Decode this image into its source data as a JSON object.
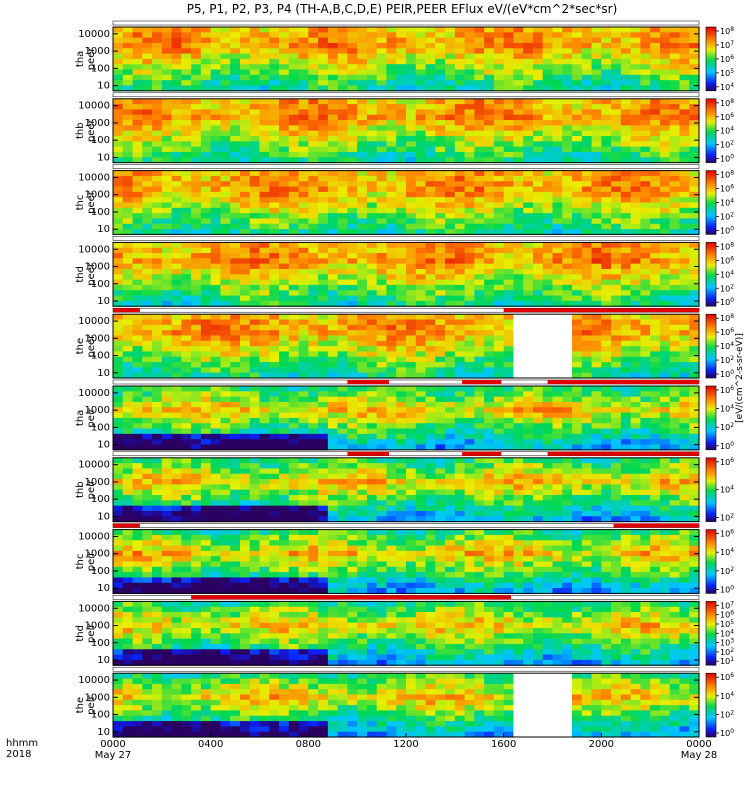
{
  "chart_data": {
    "type": "heatmap",
    "title": "P5, P1, P2, P3, P4 (TH-A,B,C,D,E) PEIR,PEER EFlux eV/(eV*cm^2*sec*sr)",
    "xlabel": "hhmm",
    "year": "2018",
    "x_ticks": [
      {
        "label": "0000",
        "date": "May 27"
      },
      {
        "label": "0400",
        "date": ""
      },
      {
        "label": "0800",
        "date": ""
      },
      {
        "label": "1200",
        "date": ""
      },
      {
        "label": "1600",
        "date": ""
      },
      {
        "label": "2000",
        "date": ""
      },
      {
        "label": "0000",
        "date": "May 28"
      }
    ],
    "xlim_hours": [
      0,
      24
    ],
    "y_ticks": [
      "10000",
      "1000",
      "100",
      "10"
    ],
    "ylim_eV": [
      5,
      25000
    ],
    "y_scale": "log",
    "colorbar_units": "[eV/(cm^2-s-sr-eV)]",
    "colormap": "rainbow (blue-green-yellow-red)",
    "panels": [
      {
        "probe": "tha",
        "species": "peer",
        "cb_ticks": [
          "10^8",
          "10^7",
          "10^6",
          "10^5",
          "10^4"
        ],
        "gaps_hours": [],
        "flags": []
      },
      {
        "probe": "thb",
        "species": "peer",
        "cb_ticks": [
          "10^8",
          "10^6",
          "10^4",
          "10^2",
          "10^0"
        ],
        "gaps_hours": [],
        "flags": []
      },
      {
        "probe": "thc",
        "species": "peer",
        "cb_ticks": [
          "10^8",
          "10^6",
          "10^4",
          "10^2",
          "10^0"
        ],
        "gaps_hours": [],
        "flags": []
      },
      {
        "probe": "thd",
        "species": "peer",
        "cb_ticks": [
          "10^8",
          "10^6",
          "10^4",
          "10^2",
          "10^0"
        ],
        "gaps_hours": [],
        "flags": []
      },
      {
        "probe": "the",
        "species": "peer",
        "cb_ticks": [
          "10^8",
          "10^6",
          "10^4",
          "10^2",
          "10^0"
        ],
        "gaps_hours": [
          [
            16.5,
            18.8
          ]
        ],
        "flags": [
          [
            0,
            1.1
          ],
          [
            16,
            24
          ]
        ]
      },
      {
        "probe": "tha",
        "species": "peir",
        "cb_ticks": [
          "10^6",
          "10^4",
          "10^2",
          "10^0"
        ],
        "gaps_hours": [],
        "flags": [
          [
            9.6,
            11.3
          ],
          [
            14.3,
            15.9
          ],
          [
            17.8,
            24
          ]
        ]
      },
      {
        "probe": "thb",
        "species": "peir",
        "cb_ticks": [
          "10^6",
          "10^4",
          "10^2"
        ],
        "gaps_hours": [],
        "flags": [
          [
            9.6,
            11.3
          ],
          [
            14.3,
            15.9
          ],
          [
            17.8,
            24
          ]
        ]
      },
      {
        "probe": "thc",
        "species": "peir",
        "cb_ticks": [
          "10^6",
          "10^4",
          "10^2",
          "10^0"
        ],
        "gaps_hours": [],
        "flags": [
          [
            0,
            1.1
          ],
          [
            20.5,
            24
          ]
        ]
      },
      {
        "probe": "thd",
        "species": "peir",
        "cb_ticks": [
          "10^7",
          "10^6",
          "10^5",
          "10^4",
          "10^3",
          "10^2",
          "10^1"
        ],
        "gaps_hours": [],
        "flags": [
          [
            3.2,
            16.3
          ]
        ]
      },
      {
        "probe": "the",
        "species": "peir",
        "cb_ticks": [
          "10^6",
          "10^4",
          "10^2",
          "10^0"
        ],
        "gaps_hours": [
          [
            16.5,
            18.8
          ]
        ],
        "flags": []
      }
    ]
  }
}
